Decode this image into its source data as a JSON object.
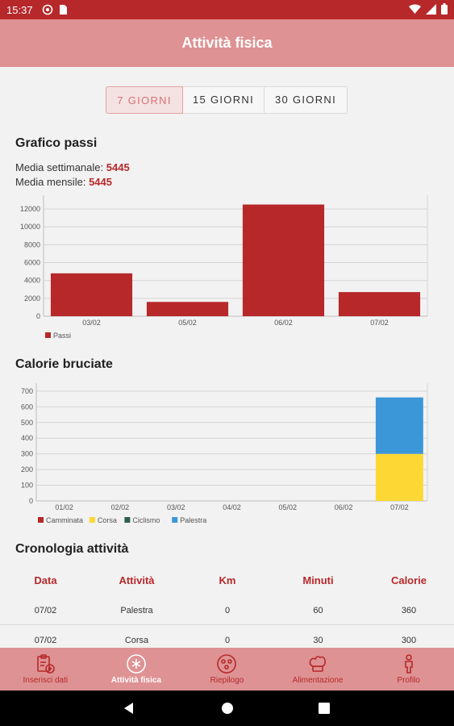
{
  "status_bar": {
    "time": "15:37"
  },
  "app_bar": {
    "title": "Attività fisica"
  },
  "period_tabs": [
    {
      "label": "7 GIORNI",
      "active": true
    },
    {
      "label": "15 GIORNI",
      "active": false
    },
    {
      "label": "30 GIORNI",
      "active": false
    }
  ],
  "steps_section": {
    "title": "Grafico passi",
    "weekly_label": "Media settimanale:",
    "weekly_value": "5445",
    "monthly_label": "Media mensile:",
    "monthly_value": "5445"
  },
  "calories_section": {
    "title": "Calorie bruciate"
  },
  "chart_data": [
    {
      "type": "bar",
      "categories": [
        "03/02",
        "05/02",
        "06/02",
        "07/02"
      ],
      "series": [
        {
          "name": "Passi",
          "values": [
            4800,
            1600,
            12500,
            2700
          ],
          "color": "#b7282a"
        }
      ],
      "ylim": [
        0,
        13000
      ],
      "yticks": [
        0,
        2000,
        4000,
        6000,
        8000,
        10000,
        12000
      ],
      "grid": true,
      "legend": "bottom-left"
    },
    {
      "type": "bar",
      "stacked": true,
      "categories": [
        "01/02",
        "02/02",
        "03/02",
        "04/02",
        "05/02",
        "06/02",
        "07/02"
      ],
      "series": [
        {
          "name": "Camminata",
          "values": [
            0,
            0,
            0,
            0,
            0,
            0,
            0
          ],
          "color": "#b7282a"
        },
        {
          "name": "Corsa",
          "values": [
            0,
            0,
            0,
            0,
            0,
            0,
            300
          ],
          "color": "#fdd835"
        },
        {
          "name": "Ciclismo",
          "values": [
            0,
            0,
            0,
            0,
            0,
            0,
            0
          ],
          "color": "#2e5e4e"
        },
        {
          "name": "Palestra",
          "values": [
            0,
            0,
            0,
            0,
            0,
            0,
            360
          ],
          "color": "#3b97d8"
        }
      ],
      "ylim": [
        0,
        720
      ],
      "yticks": [
        0,
        100,
        200,
        300,
        400,
        500,
        600,
        700
      ],
      "grid": true,
      "legend": "bottom-left"
    }
  ],
  "history_section": {
    "title": "Cronologia attività",
    "columns": [
      "Data",
      "Attività",
      "Km",
      "Minuti",
      "Calorie"
    ],
    "rows": [
      [
        "07/02",
        "Palestra",
        "0",
        "60",
        "360"
      ],
      [
        "07/02",
        "Corsa",
        "0",
        "30",
        "300"
      ]
    ]
  },
  "bottom_nav": [
    {
      "label": "Inserisci dati",
      "icon": "clipboard-plus-icon",
      "active": false
    },
    {
      "label": "Attività fisica",
      "icon": "activity-icon",
      "active": true
    },
    {
      "label": "Riepilogo",
      "icon": "summary-icon",
      "active": false
    },
    {
      "label": "Alimentazione",
      "icon": "chef-hat-icon",
      "active": false
    },
    {
      "label": "Profilo",
      "icon": "person-icon",
      "active": false
    }
  ]
}
